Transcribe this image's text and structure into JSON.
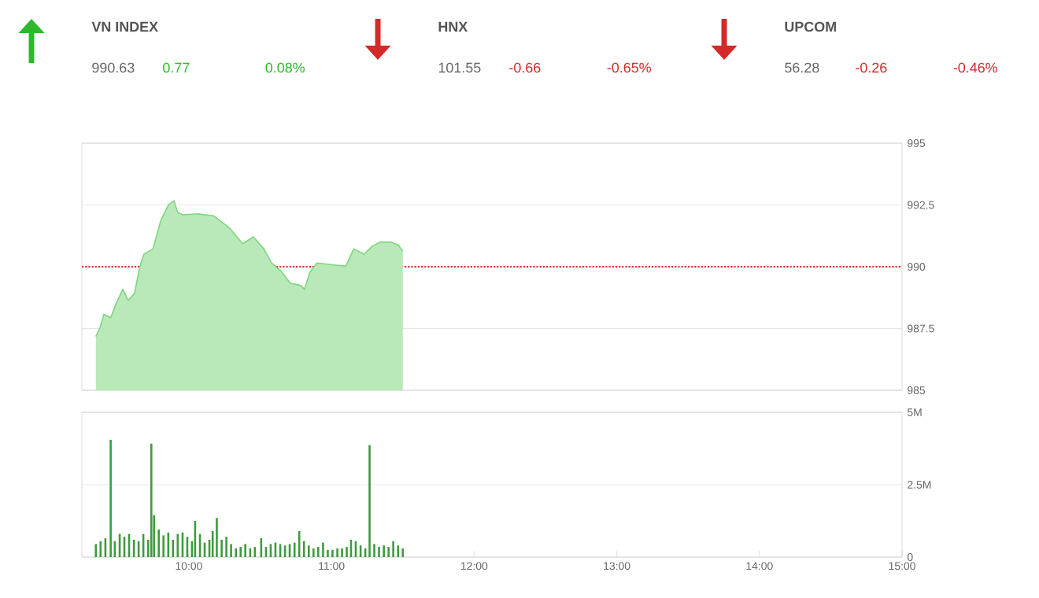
{
  "chart_data": [
    {
      "type": "other",
      "categories": [
        "VN INDEX",
        "HNX",
        "UPCOM"
      ],
      "series": [
        {
          "color": "#666666",
          "values": [
            990.63,
            101.55,
            56.28
          ],
          "value_labels": [
            "990.63",
            "101.55",
            "56.28"
          ]
        },
        {
          "colors": [
            "#2db82d",
            "#d42a2a",
            "#d42a2a"
          ],
          "values": [
            0.77,
            -0.66,
            -0.26
          ],
          "value_labels": [
            "0.77",
            "-0.66",
            "-0.26"
          ]
        },
        {
          "colors": [
            "#2db82d",
            "#d42a2a",
            "#d42a2a"
          ],
          "values": [
            0.08,
            -0.65,
            -0.46
          ],
          "value_labels": [
            "0.08%",
            "-0.65%",
            "-0.46%"
          ]
        }
      ]
    },
    {
      "type": "area",
      "xlim": [
        9.25,
        15
      ],
      "ylim": [
        985,
        995
      ],
      "yticks": [
        985,
        987.5,
        990,
        992.5,
        995
      ],
      "grid": "y",
      "tick_labels": "y",
      "ref_lines": [
        {
          "axis": "y",
          "value": 990,
          "color": "#e03030",
          "line_style": "dotted"
        }
      ],
      "series": [
        {
          "color": "#7fd67f",
          "x": [
            9.348,
            9.378,
            9.403,
            9.452,
            9.489,
            9.537,
            9.574,
            9.619,
            9.656,
            9.685,
            9.748,
            9.804,
            9.859,
            9.896,
            9.922,
            9.959,
            10.063,
            10.174,
            10.285,
            10.378,
            10.452,
            10.526,
            10.581,
            10.648,
            10.711,
            10.785,
            10.811,
            10.848,
            10.896,
            11.007,
            11.1,
            11.156,
            11.23,
            11.285,
            11.341,
            11.415,
            11.47,
            11.5
          ],
          "values": [
            987.18,
            987.54,
            988.07,
            987.94,
            988.5,
            989.09,
            988.64,
            988.92,
            990.0,
            990.51,
            990.72,
            991.89,
            992.52,
            992.67,
            992.2,
            992.1,
            992.14,
            992.06,
            991.57,
            990.93,
            991.21,
            990.72,
            990.15,
            989.81,
            989.34,
            989.24,
            989.09,
            989.77,
            990.15,
            990.08,
            990.02,
            990.72,
            990.51,
            990.83,
            991.0,
            991.0,
            990.87,
            990.63
          ]
        }
      ]
    },
    {
      "type": "bar",
      "xlim": [
        9.25,
        15
      ],
      "ylim": [
        0,
        5
      ],
      "grid": "y",
      "yticks": [
        0,
        {
          "value": 2.5,
          "label": "2.5M"
        },
        {
          "value": 5,
          "label": "5M"
        }
      ],
      "xticks": [
        {
          "value": 10,
          "label": "10:00"
        },
        {
          "value": 11,
          "label": "11:00"
        },
        {
          "value": 12,
          "label": "12:00"
        },
        {
          "value": 13,
          "label": "13:00"
        },
        {
          "value": 14,
          "label": "14:00"
        },
        {
          "value": 15,
          "label": "15:00"
        }
      ],
      "series": [
        {
          "color": "#3f9a3f",
          "x": [
            9.348,
            9.381,
            9.415,
            9.452,
            9.481,
            9.515,
            9.548,
            9.581,
            9.615,
            9.648,
            9.681,
            9.715,
            9.737,
            9.756,
            9.789,
            9.822,
            9.856,
            9.889,
            9.922,
            9.956,
            9.989,
            10.022,
            10.044,
            10.078,
            10.111,
            10.144,
            10.167,
            10.196,
            10.23,
            10.263,
            10.296,
            10.33,
            10.363,
            10.396,
            10.43,
            10.463,
            10.507,
            10.541,
            10.574,
            10.607,
            10.641,
            10.674,
            10.707,
            10.741,
            10.774,
            10.807,
            10.841,
            10.874,
            10.907,
            10.941,
            10.974,
            11.007,
            11.041,
            11.074,
            11.107,
            11.137,
            11.17,
            11.204,
            11.237,
            11.267,
            11.3,
            11.333,
            11.367,
            11.4,
            11.433,
            11.467,
            11.5
          ],
          "values": [
            0.45,
            0.55,
            0.65,
            4.05,
            0.55,
            0.8,
            0.7,
            0.8,
            0.6,
            0.55,
            0.8,
            0.6,
            3.92,
            1.45,
            0.95,
            0.75,
            0.85,
            0.6,
            0.8,
            0.85,
            0.7,
            0.55,
            1.25,
            0.8,
            0.5,
            0.6,
            0.9,
            1.35,
            0.6,
            0.7,
            0.45,
            0.3,
            0.35,
            0.45,
            0.3,
            0.35,
            0.65,
            0.35,
            0.45,
            0.5,
            0.45,
            0.4,
            0.45,
            0.5,
            0.9,
            0.55,
            0.4,
            0.3,
            0.35,
            0.5,
            0.25,
            0.25,
            0.3,
            0.3,
            0.35,
            0.6,
            0.55,
            0.4,
            0.3,
            3.87,
            0.45,
            0.35,
            0.4,
            0.35,
            0.55,
            0.4,
            0.3
          ]
        }
      ]
    }
  ]
}
